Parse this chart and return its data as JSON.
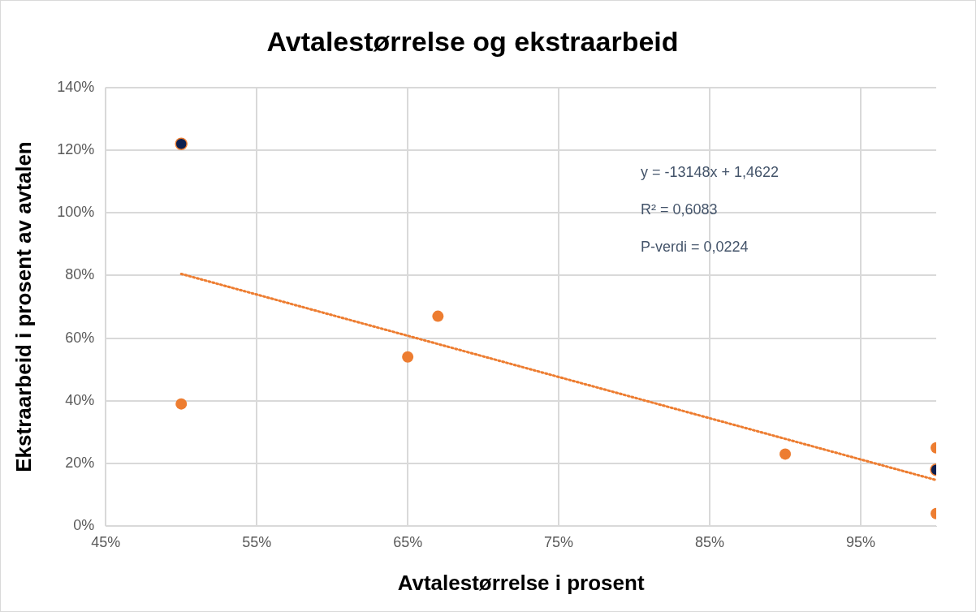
{
  "chart_data": {
    "type": "scatter",
    "title": "Avtalestørrelse og ekstraarbeid",
    "xlabel": "Avtalestørrelse i prosent",
    "ylabel": "Ekstraarbeid i prosent av avtalen",
    "series": [
      {
        "color": "#ed7d31",
        "x": [
          50,
          65,
          67,
          90,
          100,
          100
        ],
        "values": [
          39,
          54,
          67,
          23,
          25,
          4
        ]
      },
      {
        "color": "#0d1f4f",
        "x": [
          50,
          100
        ],
        "values": [
          122,
          18
        ]
      },
      {
        "type": "line",
        "line_style": "dotted",
        "marker": "none",
        "color": "#ed7d31",
        "x": [
          50,
          100
        ],
        "values": [
          80.5,
          14.7
        ]
      }
    ],
    "xlim": [
      45,
      100
    ],
    "xticks": [
      {
        "value": 45,
        "label": "45%"
      },
      {
        "value": 55,
        "label": "55%"
      },
      {
        "value": 65,
        "label": "65%"
      },
      {
        "value": 75,
        "label": "75%"
      },
      {
        "value": 85,
        "label": "85%"
      },
      {
        "value": 95,
        "label": "95%"
      }
    ],
    "ylim": [
      0,
      140
    ],
    "yticks": [
      {
        "value": 0,
        "label": "0%"
      },
      {
        "value": 20,
        "label": "20%"
      },
      {
        "value": 40,
        "label": "40%"
      },
      {
        "value": 60,
        "label": "60%"
      },
      {
        "value": 80,
        "label": "80%"
      },
      {
        "value": 100,
        "label": "100%"
      },
      {
        "value": 120,
        "label": "120%"
      },
      {
        "value": 140,
        "label": "140%"
      }
    ],
    "annotations": [
      "y = -13148x + 1,4622",
      "R² = 0,6083",
      "P-verdi = 0,0224"
    ],
    "grid": true,
    "legend": false,
    "marker": "circle"
  }
}
